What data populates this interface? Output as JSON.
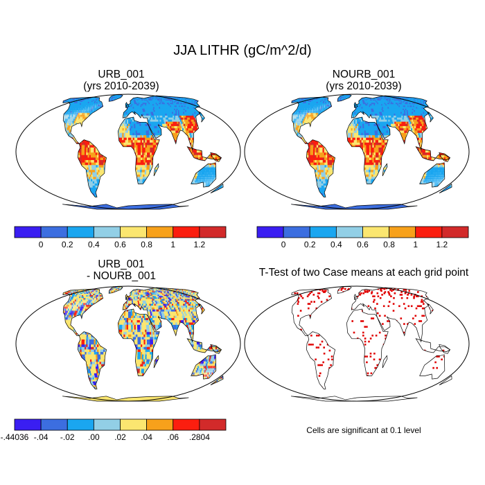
{
  "title": "JJA LITHR (gC/m^2/d)",
  "panels": [
    {
      "id": "urb",
      "title_line1": "URB_001",
      "title_line2": "(yrs 2010-2039)",
      "type": "field"
    },
    {
      "id": "nourb",
      "title_line1": "NOURB_001",
      "title_line2": "(yrs 2010-2039)",
      "type": "field"
    },
    {
      "id": "diff",
      "title_line1": "URB_001",
      "title_line2": "- NOURB_001",
      "type": "difference"
    },
    {
      "id": "ttest",
      "title_line1": "T-Test of two Case means at each grid point",
      "title_line2": "",
      "type": "significance"
    }
  ],
  "colorbar_top": {
    "colors": [
      "#3a1ef2",
      "#3c6ee0",
      "#1aa6f0",
      "#92cfe6",
      "#fbe670",
      "#f7a11b",
      "#fb1e0f",
      "#d22a2a"
    ],
    "labels": [
      "0",
      "0.2",
      "0.4",
      "0.6",
      "0.8",
      "1",
      "1.2"
    ]
  },
  "colorbar_diff": {
    "colors": [
      "#3a1ef2",
      "#3c6ee0",
      "#1aa6f0",
      "#92cfe6",
      "#fbe670",
      "#f7a11b",
      "#fb1e0f",
      "#d22a2a"
    ],
    "labels": [
      "-.44036",
      "-.04",
      "-.02",
      ".00",
      ".02",
      ".04",
      ".06",
      ".2804"
    ]
  },
  "significance_note": "Cells are significant at 0.1 level",
  "colors": {
    "ocean": "#ffffff",
    "antarctica_field": "#3c6ee0",
    "antarctica_diff": "#fbe670",
    "significant": "#e00000",
    "coast": "#000000"
  }
}
